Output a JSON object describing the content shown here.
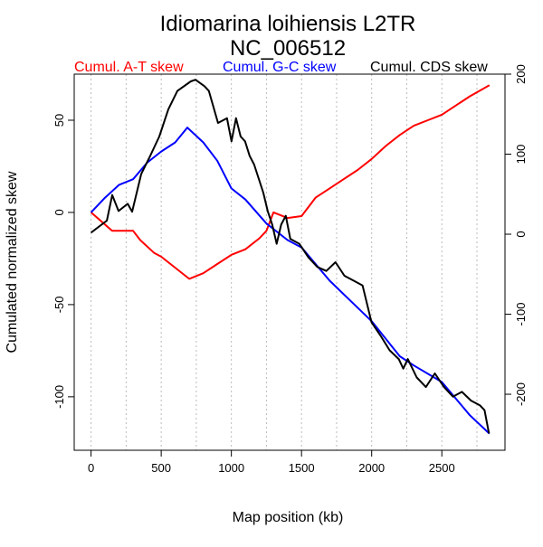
{
  "chart_data": {
    "type": "line",
    "title": "Idiomarina loihiensis L2TR",
    "subtitle": "NC_006512",
    "xlabel": "Map position (kb)",
    "ylabel": "Cumulated normalized skew",
    "xlim": [
      -120,
      2950
    ],
    "ylim": [
      -129,
      75
    ],
    "y2lim": [
      -270,
      200
    ],
    "x_ticks": [
      0,
      500,
      1000,
      1500,
      2000,
      2500
    ],
    "y_ticks": [
      50,
      0,
      -50,
      -100
    ],
    "y2_ticks": [
      200,
      100,
      0,
      -100,
      -200
    ],
    "grid_x_every_kb": 250,
    "grid": "vertical dotted",
    "legend_placement": "top",
    "series": [
      {
        "name": "Cumul. A-T skew",
        "color": "#ff0000",
        "axis": "left",
        "x": [
          0,
          150,
          300,
          350,
          450,
          500,
          600,
          700,
          800,
          900,
          1000,
          1100,
          1200,
          1250,
          1300,
          1400,
          1500,
          1600,
          1700,
          1800,
          1900,
          2000,
          2100,
          2200,
          2300,
          2400,
          2500,
          2600,
          2700,
          2839
        ],
        "y": [
          0,
          -10,
          -10,
          -15,
          -22,
          -24,
          -30,
          -36,
          -33,
          -28,
          -23,
          -20,
          -14,
          -10,
          0,
          -3,
          -2,
          8,
          13,
          18,
          23,
          29,
          36,
          42,
          47,
          50,
          53,
          58,
          63,
          69
        ]
      },
      {
        "name": "Cumul. G-C skew",
        "color": "#0000ff",
        "axis": "left",
        "x": [
          0,
          100,
          200,
          300,
          400,
          500,
          600,
          686,
          800,
          900,
          1000,
          1100,
          1250,
          1300,
          1400,
          1500,
          1700,
          2000,
          2200,
          2300,
          2500,
          2700,
          2839
        ],
        "y": [
          0,
          8,
          15,
          18,
          27,
          33,
          38,
          46,
          38,
          28,
          13,
          7,
          -6,
          -9,
          -15,
          -19,
          -37,
          -59,
          -78,
          -83,
          -92,
          -110,
          -120
        ]
      },
      {
        "name": "Cumul. CDS skew",
        "color": "#000000",
        "axis": "right",
        "x": [
          0,
          113,
          151,
          196,
          261,
          293,
          357,
          422,
          486,
          551,
          615,
          711,
          744,
          808,
          840,
          905,
          969,
          1001,
          1033,
          1066,
          1098,
          1130,
          1162,
          1227,
          1259,
          1291,
          1323,
          1355,
          1388,
          1420,
          1484,
          1549,
          1613,
          1677,
          1742,
          1806,
          1871,
          1935,
          1999,
          2064,
          2128,
          2193,
          2225,
          2257,
          2321,
          2386,
          2450,
          2515,
          2579,
          2643,
          2708,
          2772,
          2804,
          2836
        ],
        "y": [
          2,
          17,
          49,
          29,
          38,
          28,
          75,
          98,
          122,
          156,
          179,
          191,
          193,
          185,
          179,
          139,
          145,
          116,
          145,
          122,
          116,
          98,
          87,
          52,
          29,
          12,
          -12,
          12,
          23,
          -6,
          -12,
          -29,
          -41,
          -46,
          -35,
          -52,
          -58,
          -64,
          -110,
          -127,
          -145,
          -156,
          -168,
          -156,
          -179,
          -191,
          -174,
          -191,
          -203,
          -197,
          -208,
          -214,
          -220,
          -249
        ]
      }
    ]
  }
}
